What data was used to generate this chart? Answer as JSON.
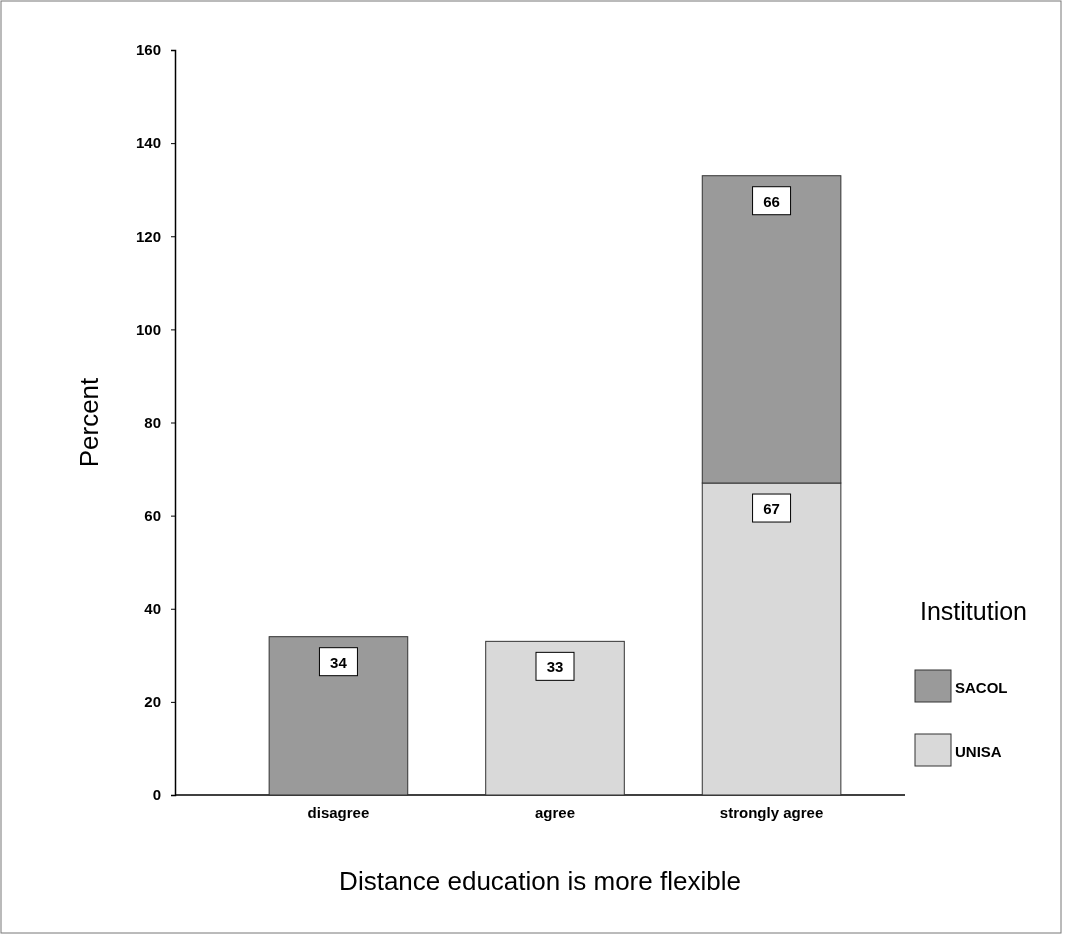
{
  "chart_data": {
    "type": "bar",
    "stacked": true,
    "xlabel": "Distance education is more flexible",
    "ylabel": "Percent",
    "legend_title": "Institution",
    "legend": "right",
    "categories": [
      "disagree",
      "agree",
      "strongly agree"
    ],
    "ylim": [
      0,
      160
    ],
    "yticks": [
      0,
      20,
      40,
      60,
      80,
      100,
      120,
      140,
      160
    ],
    "grid": false,
    "data_labels": true,
    "series": [
      {
        "name": "UNISA",
        "color": "#d9d9d9",
        "values": [
          null,
          33,
          67
        ]
      },
      {
        "name": "SACOL",
        "color": "#9a9a9a",
        "values": [
          34,
          null,
          66
        ]
      }
    ]
  }
}
